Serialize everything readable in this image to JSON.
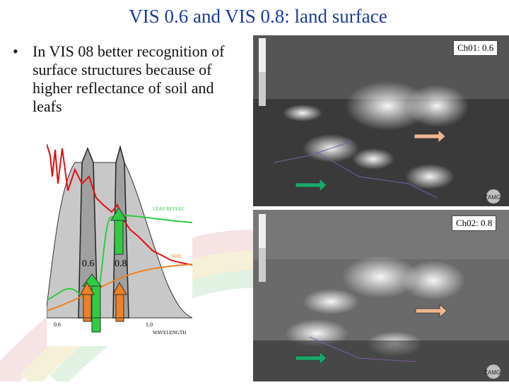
{
  "slide": {
    "title": "VIS 0.6 and VIS 0.8: land surface",
    "bullet_marker": "•",
    "bullet": "In VIS 08 better recognition of surface structures because of higher reflectance of soil and leafs"
  },
  "spectrum": {
    "band_labels": [
      "0.6",
      "0.8"
    ],
    "axis_ticks": [
      "0.6",
      "1.0",
      "WAVELENGTH"
    ],
    "curve_labels": [
      "LEAF REFLEC",
      "SOIL"
    ],
    "colors": {
      "leaf": "#2ecc40",
      "soil": "#f08020",
      "solar": "#e01010",
      "filter": "#333333"
    }
  },
  "satellite": {
    "panels": [
      {
        "label": "Ch01: 0.6",
        "logo": "ZAMG"
      },
      {
        "label": "Ch02: 0.8",
        "logo": "ZAMG"
      }
    ]
  },
  "colors": {
    "title": "#1a3a9c",
    "arrow_green": "#1aa86a",
    "arrow_orange": "#f0b890"
  }
}
